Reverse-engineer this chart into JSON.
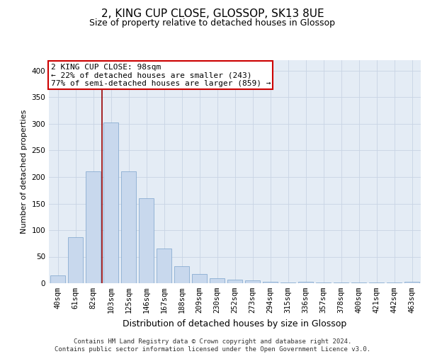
{
  "title": "2, KING CUP CLOSE, GLOSSOP, SK13 8UE",
  "subtitle": "Size of property relative to detached houses in Glossop",
  "xlabel": "Distribution of detached houses by size in Glossop",
  "ylabel": "Number of detached properties",
  "categories": [
    "40sqm",
    "61sqm",
    "82sqm",
    "103sqm",
    "125sqm",
    "146sqm",
    "167sqm",
    "188sqm",
    "209sqm",
    "230sqm",
    "252sqm",
    "273sqm",
    "294sqm",
    "315sqm",
    "336sqm",
    "357sqm",
    "378sqm",
    "400sqm",
    "421sqm",
    "442sqm",
    "463sqm"
  ],
  "values": [
    15,
    87,
    210,
    303,
    210,
    160,
    65,
    32,
    18,
    10,
    7,
    5,
    3,
    2,
    3,
    2,
    2,
    2,
    2,
    2,
    3
  ],
  "bar_color": "#c8d8ed",
  "bar_edgecolor": "#7ba3cc",
  "grid_color": "#c8d4e4",
  "background_color": "#e4ecf5",
  "vline_x": 2.5,
  "vline_color": "#990000",
  "annotation_text": "2 KING CUP CLOSE: 98sqm\n← 22% of detached houses are smaller (243)\n77% of semi-detached houses are larger (859) →",
  "annotation_box_color": "#ffffff",
  "annotation_box_edgecolor": "#cc0000",
  "footer_line1": "Contains HM Land Registry data © Crown copyright and database right 2024.",
  "footer_line2": "Contains public sector information licensed under the Open Government Licence v3.0.",
  "ylim": [
    0,
    420
  ],
  "title_fontsize": 11,
  "subtitle_fontsize": 9,
  "xlabel_fontsize": 9,
  "ylabel_fontsize": 8,
  "tick_fontsize": 7.5,
  "annotation_fontsize": 8,
  "footer_fontsize": 6.5
}
